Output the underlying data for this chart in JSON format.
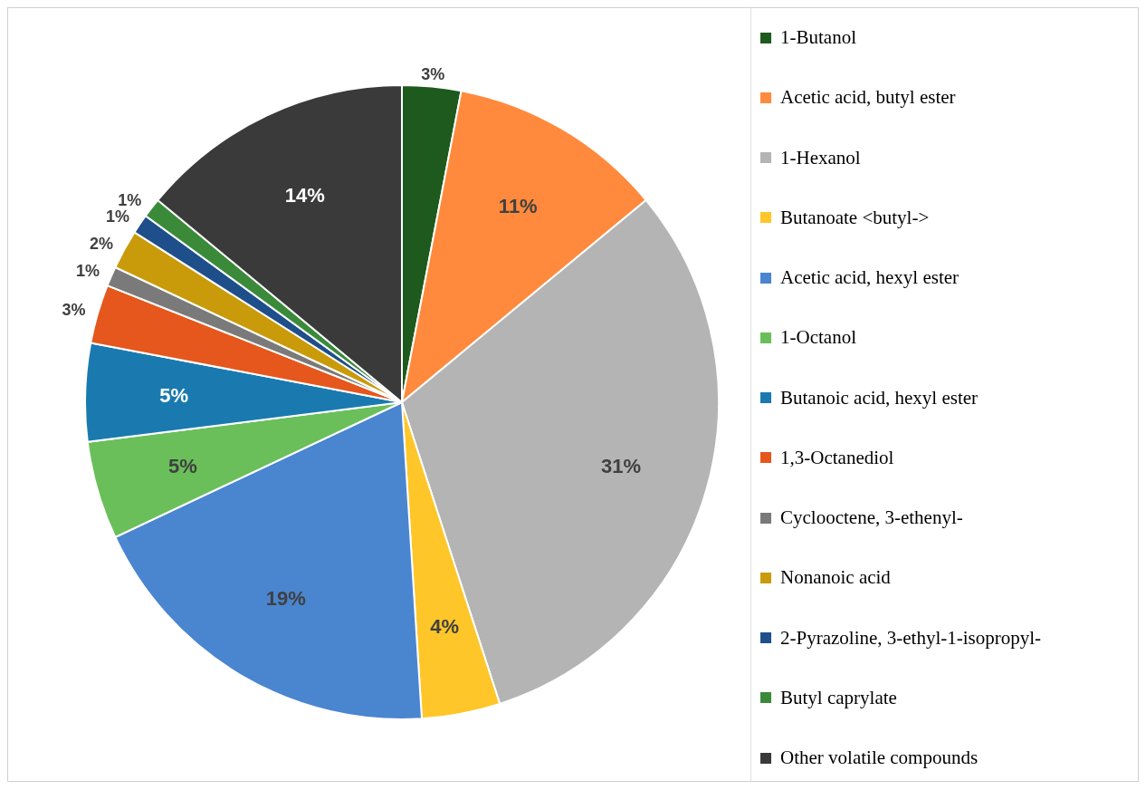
{
  "chart_data": {
    "type": "pie",
    "categories": [
      "1-Butanol",
      "Acetic acid, butyl ester",
      "1-Hexanol",
      "Butanoate <butyl->",
      "Acetic acid, hexyl ester",
      "1-Octanol",
      "Butanoic acid, hexyl ester",
      "1,3-Octanediol",
      "Cyclooctene, 3-ethenyl-",
      "Nonanoic acid",
      "2-Pyrazoline, 3-ethyl-1-isopropyl-",
      "Butyl caprylate",
      "Other volatile compounds"
    ],
    "values": [
      3,
      11,
      31,
      4,
      19,
      5,
      5,
      3,
      1,
      2,
      1,
      1,
      14
    ],
    "value_labels": [
      "3%",
      "11%",
      "31%",
      "4%",
      "19%",
      "5%",
      "5%",
      "3%",
      "1%",
      "2%",
      "1%",
      "1%",
      "14%"
    ],
    "colors": [
      "#1e5a1e",
      "#ff8a3d",
      "#b4b4b4",
      "#ffc629",
      "#4a85d0",
      "#6abf5a",
      "#1a7ab0",
      "#e5571c",
      "#7a7a7a",
      "#c99a0a",
      "#1e4f8a",
      "#3a8a3a",
      "#3a3a3a"
    ],
    "legend": "right"
  }
}
